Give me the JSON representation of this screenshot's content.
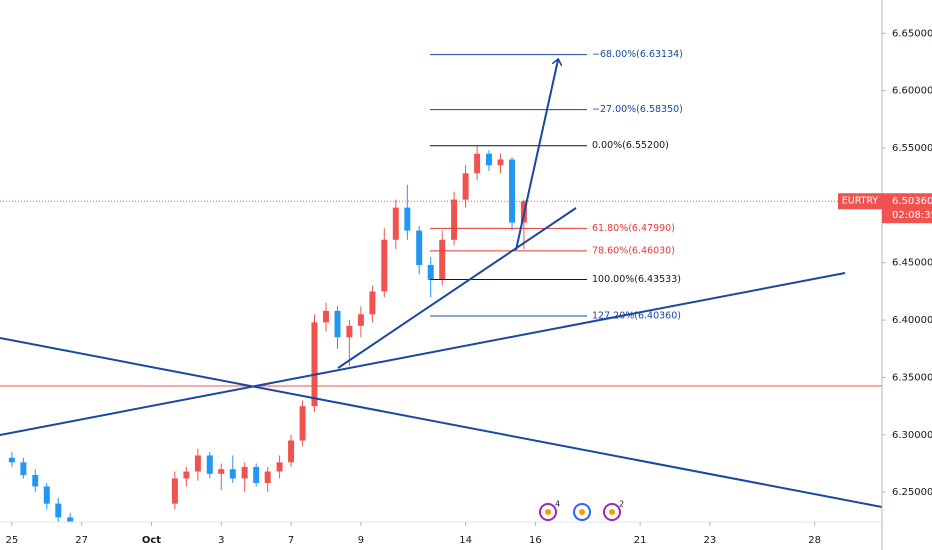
{
  "chart_data": {
    "type": "candlestick",
    "symbol": "EURTRY",
    "countdown": "02:08:35",
    "last_price": {
      "value": 6.5036,
      "label": "6.50360"
    },
    "up_color": "#ef5350",
    "down_color": "#2196f3",
    "xlim": [
      -0.34,
      24.93
    ],
    "ylim": [
      6.224,
      6.679
    ],
    "yticks": [
      {
        "value": 6.25,
        "label": "6.25000"
      },
      {
        "value": 6.3,
        "label": "6.30000"
      },
      {
        "value": 6.35,
        "label": "6.35000"
      },
      {
        "value": 6.4,
        "label": "6.40000"
      },
      {
        "value": 6.45,
        "label": "6.45000"
      },
      {
        "value": 6.5,
        "label": "6.50000"
      },
      {
        "value": 6.55,
        "label": "6.55000"
      },
      {
        "value": 6.6,
        "label": "6.60000"
      },
      {
        "value": 6.65,
        "label": "6.65000"
      }
    ],
    "xticks": [
      {
        "value": 0,
        "label": "25"
      },
      {
        "value": 2,
        "label": "27"
      },
      {
        "value": 4,
        "label": "Oct"
      },
      {
        "value": 6,
        "label": "3"
      },
      {
        "value": 8,
        "label": "7"
      },
      {
        "value": 10,
        "label": "9"
      },
      {
        "value": 13,
        "label": "14"
      },
      {
        "value": 15,
        "label": "16"
      },
      {
        "value": 18,
        "label": "21"
      },
      {
        "value": 20,
        "label": "23"
      },
      {
        "value": 23,
        "label": "28"
      }
    ],
    "x": [
      0,
      0.33,
      0.67,
      1,
      1.33,
      1.67,
      4.67,
      5,
      5.33,
      5.67,
      6,
      6.33,
      6.67,
      7,
      7.33,
      7.67,
      8,
      8.33,
      8.67,
      9,
      9.33,
      9.67,
      10,
      10.33,
      10.67,
      11,
      11.33,
      11.67,
      12,
      12.33,
      12.67,
      13,
      13.33,
      13.67,
      14,
      14.33,
      14.67
    ],
    "open": [
      6.28,
      6.276,
      6.265,
      6.255,
      6.24,
      6.228,
      6.24,
      6.262,
      6.268,
      6.282,
      6.266,
      6.27,
      6.262,
      6.272,
      6.258,
      6.268,
      6.276,
      6.295,
      6.325,
      6.398,
      6.408,
      6.385,
      6.395,
      6.405,
      6.425,
      6.47,
      6.498,
      6.478,
      6.448,
      6.435,
      6.47,
      6.505,
      6.528,
      6.545,
      6.535,
      6.54,
      6.485
    ],
    "high": [
      6.285,
      6.28,
      6.27,
      6.258,
      6.245,
      6.232,
      6.268,
      6.272,
      6.288,
      6.285,
      6.275,
      6.282,
      6.276,
      6.275,
      6.272,
      6.282,
      6.3,
      6.33,
      6.405,
      6.415,
      6.412,
      6.4,
      6.412,
      6.43,
      6.48,
      6.505,
      6.518,
      6.482,
      6.455,
      6.478,
      6.512,
      6.535,
      6.552,
      6.548,
      6.545,
      6.542,
      6.505
    ],
    "low": [
      6.272,
      6.262,
      6.25,
      6.235,
      6.222,
      6.215,
      6.235,
      6.255,
      6.26,
      6.262,
      6.252,
      6.258,
      6.25,
      6.255,
      6.25,
      6.262,
      6.272,
      6.29,
      6.32,
      6.39,
      6.375,
      6.36,
      6.385,
      6.398,
      6.42,
      6.462,
      6.47,
      6.44,
      6.42,
      6.43,
      6.465,
      6.498,
      6.522,
      6.53,
      6.528,
      6.478,
      6.462
    ],
    "close": [
      6.276,
      6.265,
      6.255,
      6.24,
      6.228,
      6.22,
      6.262,
      6.268,
      6.282,
      6.266,
      6.27,
      6.262,
      6.272,
      6.258,
      6.268,
      6.276,
      6.295,
      6.325,
      6.398,
      6.408,
      6.385,
      6.395,
      6.405,
      6.425,
      6.47,
      6.498,
      6.478,
      6.448,
      6.435,
      6.47,
      6.505,
      6.528,
      6.545,
      6.535,
      6.54,
      6.485,
      6.5036
    ],
    "fib_levels": [
      {
        "value": 6.63134,
        "label": "−68.00%(6.63134)",
        "color": "#1848a0"
      },
      {
        "value": 6.5835,
        "label": "−27.00%(6.58350)",
        "color": "#1848a0"
      },
      {
        "value": 6.552,
        "label": "0.00%(6.55200)",
        "color": "#131722"
      },
      {
        "value": 6.4799,
        "label": "61.80%(6.47990)",
        "color": "#e53935"
      },
      {
        "value": 6.4603,
        "label": "78.60%(6.46030)",
        "color": "#e53935"
      },
      {
        "value": 6.43533,
        "label": "100.00%(6.43533)",
        "color": "#131722"
      },
      {
        "value": 6.4036,
        "label": "127.20%(6.40360)",
        "color": "#1848a0"
      }
    ],
    "event_badges": [
      "4",
      "2"
    ]
  }
}
